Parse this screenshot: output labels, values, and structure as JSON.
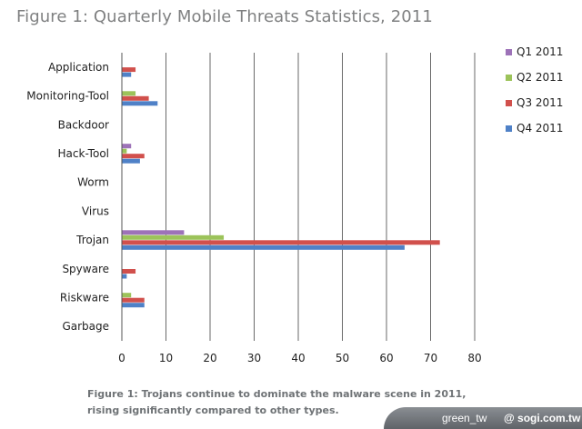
{
  "figure": {
    "title": "Figure 1: Quarterly Mobile Threats Statistics, 2011",
    "caption": "Figure 1: Trojans continue to dominate the malware scene in 2011, rising significantly compared to other types."
  },
  "watermark": {
    "author": "green_tw",
    "site": "@ sogi.com.tw"
  },
  "chart_data": {
    "type": "bar",
    "orientation": "horizontal",
    "categories": [
      "Application",
      "Monitoring-Tool",
      "Backdoor",
      "Hack-Tool",
      "Worm",
      "Virus",
      "Trojan",
      "Spyware",
      "Riskware",
      "Garbage"
    ],
    "series": [
      {
        "name": "Q1 2011",
        "color": "#9d72b8",
        "values": [
          0,
          0,
          0,
          2,
          0,
          0,
          14,
          0,
          0,
          0
        ]
      },
      {
        "name": "Q2 2011",
        "color": "#9cc35a",
        "values": [
          0,
          3,
          0,
          1,
          0,
          0,
          23,
          0,
          2,
          0
        ]
      },
      {
        "name": "Q3 2011",
        "color": "#d1504c",
        "values": [
          3,
          6,
          0,
          5,
          0,
          0,
          72,
          3,
          5,
          0
        ]
      },
      {
        "name": "Q4 2011",
        "color": "#4f81c7",
        "values": [
          2,
          8,
          0,
          4,
          0,
          0,
          64,
          1,
          5,
          0
        ]
      }
    ],
    "xlim": [
      0,
      80
    ],
    "xticks": [
      0,
      10,
      20,
      30,
      40,
      50,
      60,
      70,
      80
    ],
    "grid": true,
    "legend_position": "right"
  }
}
